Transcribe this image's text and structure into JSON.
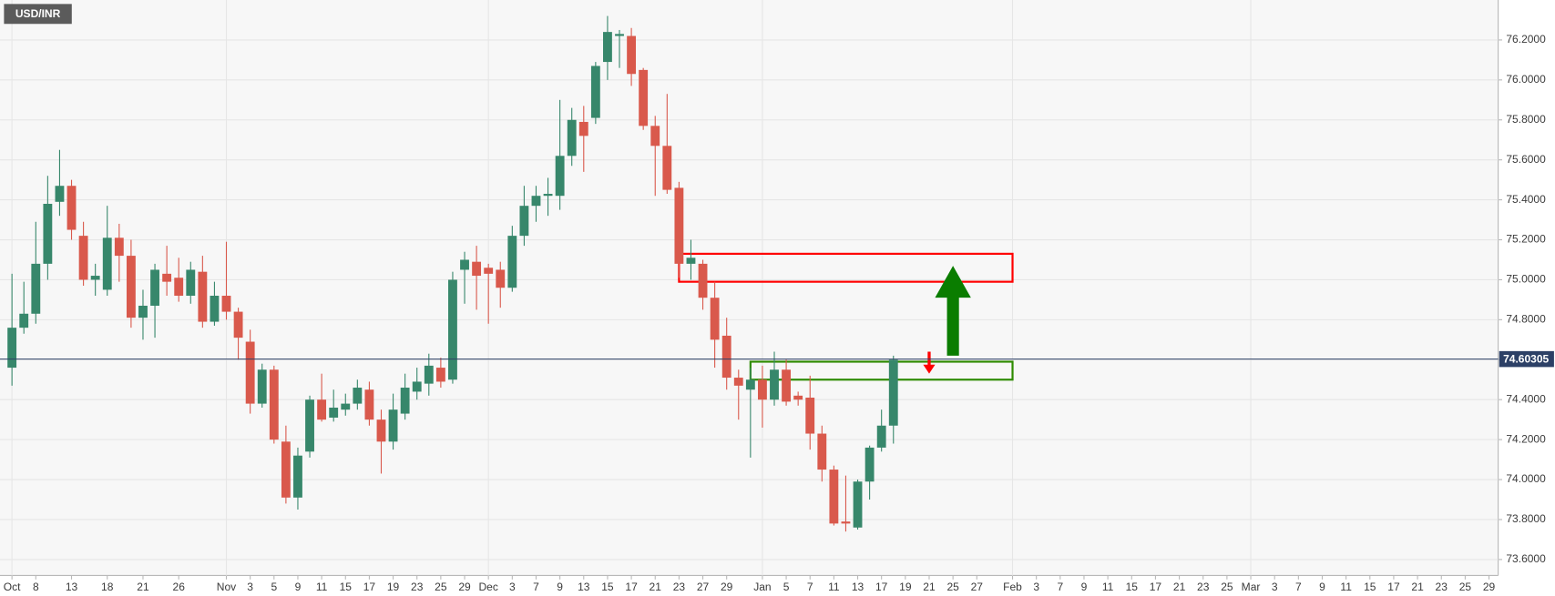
{
  "chart_data": {
    "type": "candlestick",
    "title": "USD/INR",
    "categories": [
      "Oct",
      null,
      "8",
      null,
      null,
      "13",
      null,
      null,
      "18",
      null,
      null,
      "21",
      null,
      null,
      "26",
      null,
      null,
      null,
      "Nov",
      null,
      "3",
      null,
      "5",
      null,
      "9",
      null,
      "11",
      null,
      "15",
      null,
      "17",
      null,
      "19",
      null,
      "23",
      null,
      "25",
      null,
      "29",
      null,
      "Dec",
      null,
      "3",
      null,
      "7",
      null,
      "9",
      null,
      "13",
      null,
      "15",
      null,
      "17",
      null,
      "21",
      null,
      "23",
      null,
      "27",
      null,
      "29",
      null,
      null,
      "Jan",
      null,
      "5",
      null,
      "7",
      null,
      "11",
      null,
      "13",
      null,
      "17",
      null,
      "19",
      null,
      "21",
      null,
      "25",
      null,
      "27",
      null,
      null,
      "Feb",
      null,
      "3",
      null,
      "7",
      null,
      "9",
      null,
      "11",
      null,
      "15",
      null,
      "17",
      null,
      "21",
      null,
      "23",
      null,
      "25",
      null,
      "Mar",
      null,
      "3",
      null,
      "7",
      null,
      "9",
      null,
      "11",
      null,
      "15",
      null,
      "17",
      null,
      "21",
      null,
      "23",
      null,
      "25",
      null,
      "29"
    ],
    "open": [
      74.56,
      74.76,
      74.83,
      75.08,
      75.39,
      75.47,
      75.22,
      75.0,
      74.95,
      75.21,
      75.12,
      74.81,
      74.87,
      75.03,
      75.01,
      74.92,
      75.04,
      74.79,
      74.92,
      74.84,
      74.69,
      74.38,
      74.55,
      74.19,
      73.91,
      74.14,
      74.4,
      74.31,
      74.35,
      74.38,
      74.45,
      74.3,
      74.19,
      74.33,
      74.44,
      74.48,
      74.56,
      74.5,
      75.05,
      75.09,
      75.06,
      75.05,
      74.96,
      75.22,
      75.37,
      75.42,
      75.42,
      75.62,
      75.79,
      75.81,
      76.09,
      76.22,
      76.22,
      76.05,
      75.77,
      75.67,
      75.46,
      75.08,
      75.08,
      74.91,
      74.72,
      74.51,
      74.45,
      74.5,
      74.4,
      74.55,
      74.42,
      74.41,
      74.23,
      74.05,
      73.79,
      73.76,
      73.99,
      74.16,
      74.27,
      null,
      null,
      null,
      null,
      null,
      null,
      null,
      null,
      null,
      null,
      null,
      null,
      null,
      null,
      null,
      null,
      null,
      null,
      null,
      null,
      null,
      null,
      null,
      null,
      null,
      null,
      null,
      null,
      null,
      null,
      null,
      null,
      null,
      null,
      null,
      null,
      null,
      null,
      null,
      null,
      null,
      null,
      null,
      null,
      null,
      null,
      null,
      null,
      null,
      null
    ],
    "high": [
      75.03,
      74.99,
      75.29,
      75.52,
      75.65,
      75.5,
      75.29,
      75.08,
      75.37,
      75.28,
      75.2,
      74.95,
      75.08,
      75.17,
      75.11,
      75.09,
      75.12,
      74.99,
      75.19,
      74.86,
      74.75,
      74.58,
      74.57,
      74.27,
      74.16,
      74.42,
      74.53,
      74.45,
      74.43,
      74.5,
      74.49,
      74.35,
      74.43,
      74.53,
      74.56,
      74.63,
      74.61,
      75.04,
      75.14,
      75.17,
      75.08,
      75.09,
      75.27,
      75.47,
      75.47,
      75.51,
      75.9,
      75.86,
      75.87,
      76.09,
      76.32,
      76.25,
      76.26,
      76.06,
      75.82,
      75.93,
      75.49,
      75.2,
      75.1,
      74.99,
      74.81,
      74.55,
      74.56,
      74.57,
      74.64,
      74.6,
      74.44,
      74.52,
      74.27,
      74.07,
      74.02,
      74.0,
      74.17,
      74.35,
      74.62,
      null,
      null,
      null,
      null,
      null,
      null,
      null,
      null,
      null,
      null,
      null,
      null,
      null,
      null,
      null,
      null,
      null,
      null,
      null,
      null,
      null,
      null,
      null,
      null,
      null,
      null,
      null,
      null,
      null,
      null,
      null,
      null,
      null,
      null,
      null,
      null,
      null,
      null,
      null,
      null,
      null,
      null,
      null,
      null,
      null,
      null,
      null,
      null,
      null,
      null
    ],
    "low": [
      74.47,
      74.73,
      74.78,
      75.0,
      75.32,
      75.2,
      74.97,
      74.92,
      74.92,
      74.99,
      74.76,
      74.7,
      74.71,
      74.92,
      74.89,
      74.88,
      74.76,
      74.77,
      74.8,
      74.6,
      74.33,
      74.36,
      74.18,
      73.88,
      73.85,
      74.11,
      74.29,
      74.29,
      74.32,
      74.35,
      74.27,
      74.03,
      74.15,
      74.3,
      74.4,
      74.42,
      74.46,
      74.48,
      74.88,
      74.85,
      74.78,
      74.86,
      74.94,
      75.17,
      75.29,
      75.32,
      75.35,
      75.57,
      75.54,
      75.78,
      76.0,
      76.06,
      75.97,
      75.75,
      75.42,
      75.43,
      75.01,
      75.0,
      74.85,
      74.56,
      74.45,
      74.3,
      74.11,
      74.26,
      74.37,
      74.37,
      74.37,
      74.15,
      73.99,
      73.77,
      73.74,
      73.75,
      73.9,
      74.14,
      74.18,
      null,
      null,
      null,
      null,
      null,
      null,
      null,
      null,
      null,
      null,
      null,
      null,
      null,
      null,
      null,
      null,
      null,
      null,
      null,
      null,
      null,
      null,
      null,
      null,
      null,
      null,
      null,
      null,
      null,
      null,
      null,
      null,
      null,
      null,
      null,
      null,
      null,
      null,
      null,
      null,
      null,
      null,
      null,
      null,
      null,
      null,
      null,
      null,
      null,
      null
    ],
    "close": [
      74.76,
      74.83,
      75.08,
      75.38,
      75.47,
      75.25,
      75.0,
      75.02,
      75.21,
      75.12,
      74.81,
      74.87,
      75.05,
      74.99,
      74.92,
      75.05,
      74.79,
      74.92,
      74.84,
      74.71,
      74.38,
      74.55,
      74.2,
      73.91,
      74.12,
      74.4,
      74.3,
      74.36,
      74.38,
      74.46,
      74.3,
      74.19,
      74.35,
      74.46,
      74.49,
      74.57,
      74.49,
      75.0,
      75.1,
      75.02,
      75.03,
      74.96,
      75.22,
      75.37,
      75.42,
      75.43,
      75.62,
      75.8,
      75.72,
      76.07,
      76.24,
      76.23,
      76.03,
      75.77,
      75.67,
      75.45,
      75.08,
      75.11,
      74.91,
      74.7,
      74.51,
      74.47,
      74.5,
      74.4,
      74.55,
      74.39,
      74.4,
      74.23,
      74.05,
      73.78,
      73.78,
      73.99,
      74.16,
      74.27,
      74.6,
      null,
      null,
      null,
      null,
      null,
      null,
      null,
      null,
      null,
      null,
      null,
      null,
      null,
      null,
      null,
      null,
      null,
      null,
      null,
      null,
      null,
      null,
      null,
      null,
      null,
      null,
      null,
      null,
      null,
      null,
      null,
      null,
      null,
      null,
      null,
      null,
      null,
      null,
      null,
      null,
      null,
      null,
      null,
      null,
      null,
      null,
      null,
      null,
      null,
      null
    ],
    "up_color": "#37876b",
    "down_color": "#d9594c",
    "ylim": [
      73.52,
      76.4
    ],
    "yticks": [
      {
        "value": 73.6,
        "label": "73.6000"
      },
      {
        "value": 73.8,
        "label": "73.8000"
      },
      {
        "value": 74.0,
        "label": "74.0000"
      },
      {
        "value": 74.2,
        "label": "74.2000"
      },
      {
        "value": 74.4,
        "label": "74.4000"
      },
      {
        "value": 74.6,
        "label": "74.6000"
      },
      {
        "value": 74.8,
        "label": "74.8000"
      },
      {
        "value": 75.0,
        "label": "75.0000"
      },
      {
        "value": 75.2,
        "label": "75.2000"
      },
      {
        "value": 75.4,
        "label": "75.4000"
      },
      {
        "value": 75.6,
        "label": "75.6000"
      },
      {
        "value": 75.8,
        "label": "75.8000"
      },
      {
        "value": 76.0,
        "label": "76.0000"
      },
      {
        "value": 76.2,
        "label": "76.2000"
      }
    ],
    "grid": true,
    "last_price": 74.60305,
    "last_price_color": "#2c4066",
    "zones": [
      {
        "ymin": 74.99,
        "ymax": 75.13,
        "x0": 56,
        "x1": 84,
        "color": "#ff0000"
      },
      {
        "ymin": 74.5,
        "ymax": 74.59,
        "x0": 62,
        "x1": 84,
        "color": "#2e8b00"
      }
    ],
    "arrows": [
      {
        "from": 74.62,
        "to": 75.07,
        "x": 79,
        "color": "#0a7d00"
      },
      {
        "from": 74.64,
        "to": 74.53,
        "x": 77,
        "color": "#ff0000"
      }
    ]
  }
}
